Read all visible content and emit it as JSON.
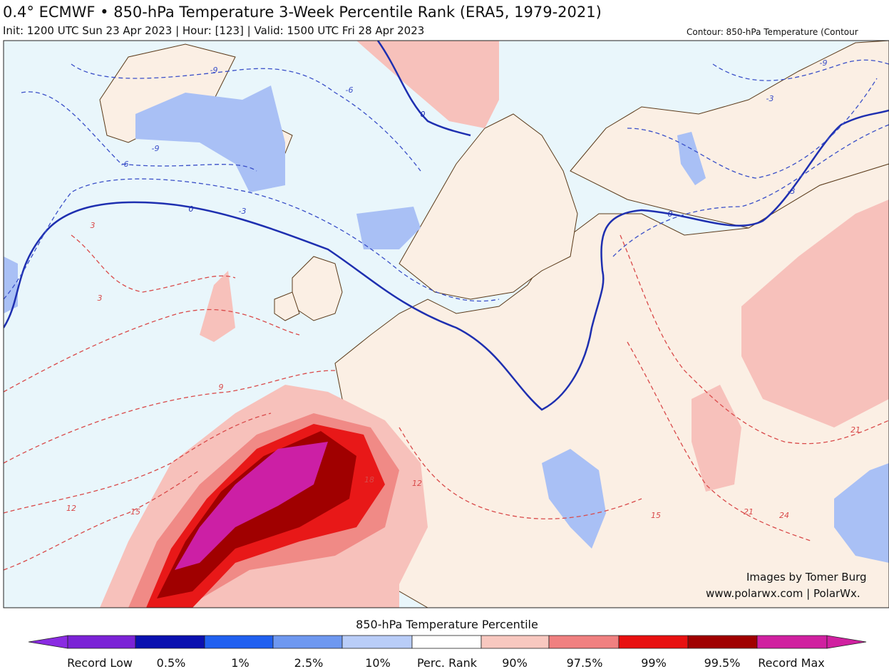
{
  "header": {
    "title": "0.4° ECMWF • 850-hPa Temperature 3-Week Percentile Rank (ERA5, 1979-2021)",
    "subtitle": "Init: 1200 UTC Sun 23 Apr 2023 | Hour: [123] | Valid: 1500 UTC Fri 28 Apr 2023",
    "contour_note": "Contour: 850-hPa Temperature (Contour"
  },
  "map": {
    "contour_labels": [
      "-9",
      "-6",
      "-9",
      "-6",
      "0",
      "-3",
      "3",
      "3",
      "0",
      "-3",
      "0",
      "9",
      "12",
      "15",
      "18",
      "21",
      "24",
      "21",
      "12",
      "15",
      "-9",
      "-3"
    ],
    "credit_line1": "Images by Tomer Burg",
    "credit_line2": "www.polarwx.com | PolarWx."
  },
  "colorbar": {
    "title": "850-hPa Temperature Percentile",
    "labels": [
      "Record Low",
      "0.5%",
      "1%",
      "2.5%",
      "10%",
      "Perc. Rank",
      "90%",
      "97.5%",
      "99%",
      "99.5%",
      "Record Max"
    ]
  }
}
